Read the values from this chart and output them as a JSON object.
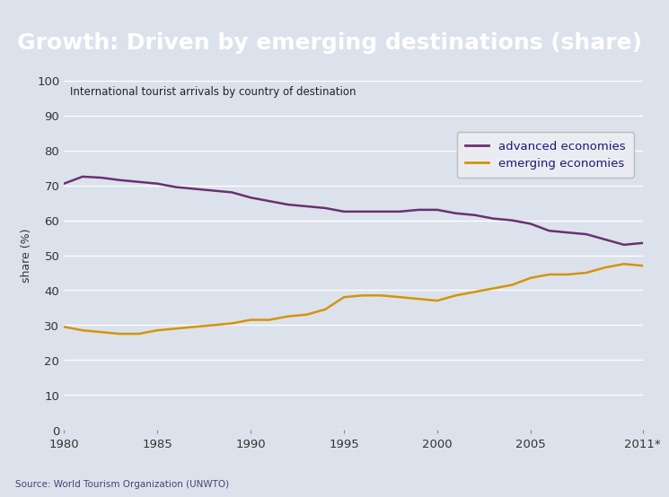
{
  "title": "Growth: Driven by emerging destinations (share)",
  "title_bg_color": "#4a7aad",
  "title_text_color": "#ffffff",
  "subtitle": "International tourist arrivals by country of destination",
  "ylabel": "share (%)",
  "source": "Source: World Tourism Organization (UNWTO)",
  "chart_bg_color": "#dce2eb",
  "plot_bg_color": "#dce2eb",
  "ylim": [
    0,
    100
  ],
  "yticks": [
    0,
    10,
    20,
    30,
    40,
    50,
    60,
    70,
    80,
    90,
    100
  ],
  "xtick_positions": [
    1980,
    1985,
    1990,
    1995,
    2000,
    2005,
    2011
  ],
  "xtick_labels": [
    "1980",
    "1985",
    "1990",
    "1995",
    "2000",
    "2005",
    "2011*"
  ],
  "advanced_color": "#6b3070",
  "emerging_color": "#d4940a",
  "legend_text_color": "#1a1a6e",
  "advanced_years": [
    1980,
    1981,
    1982,
    1983,
    1984,
    1985,
    1986,
    1987,
    1988,
    1989,
    1990,
    1991,
    1992,
    1993,
    1994,
    1995,
    1996,
    1997,
    1998,
    1999,
    2000,
    2001,
    2002,
    2003,
    2004,
    2005,
    2006,
    2007,
    2008,
    2009,
    2010,
    2011
  ],
  "advanced_values": [
    70.5,
    72.5,
    72.2,
    71.5,
    71.0,
    70.5,
    69.5,
    69.0,
    68.5,
    68.0,
    66.5,
    65.5,
    64.5,
    64.0,
    63.5,
    62.5,
    62.5,
    62.5,
    62.5,
    63.0,
    63.0,
    62.0,
    61.5,
    60.5,
    60.0,
    59.0,
    57.0,
    56.5,
    56.0,
    54.5,
    53.0,
    53.5
  ],
  "emerging_years": [
    1980,
    1981,
    1982,
    1983,
    1984,
    1985,
    1986,
    1987,
    1988,
    1989,
    1990,
    1991,
    1992,
    1993,
    1994,
    1995,
    1996,
    1997,
    1998,
    1999,
    2000,
    2001,
    2002,
    2003,
    2004,
    2005,
    2006,
    2007,
    2008,
    2009,
    2010,
    2011
  ],
  "emerging_values": [
    29.5,
    28.5,
    28.0,
    27.5,
    27.5,
    28.5,
    29.0,
    29.5,
    30.0,
    30.5,
    31.5,
    31.5,
    32.5,
    33.0,
    34.5,
    38.0,
    38.5,
    38.5,
    38.0,
    37.5,
    37.0,
    38.5,
    39.5,
    40.5,
    41.5,
    43.5,
    44.5,
    44.5,
    45.0,
    46.5,
    47.5,
    47.0
  ]
}
